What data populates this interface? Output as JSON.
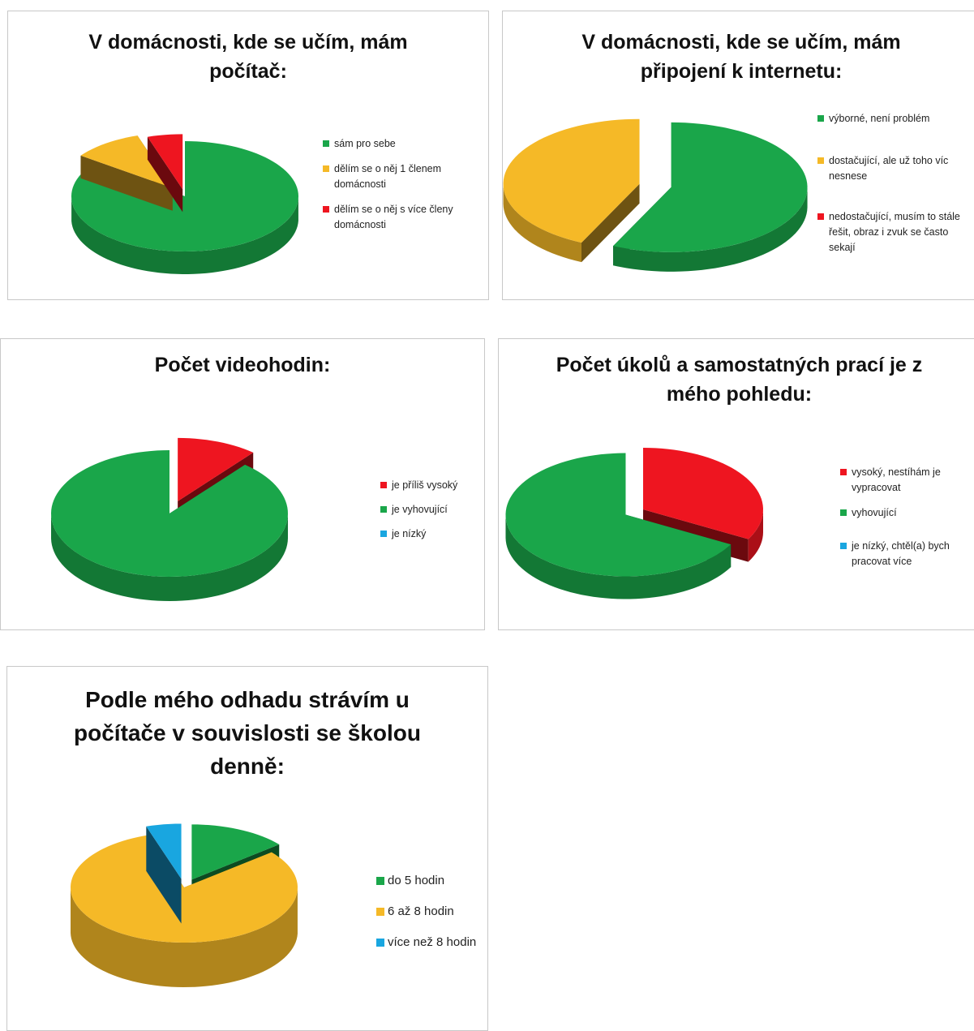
{
  "colors": {
    "green": "#1aa64a",
    "yellow": "#f5b927",
    "red": "#ee1520",
    "blue": "#19a6e0"
  },
  "chart_data": [
    {
      "type": "pie",
      "title": "V domácnosti, kde se učím, mám počítač:",
      "title_lines": [
        "V domácnosti, kde se učím, mám",
        "počítač:"
      ],
      "series": [
        {
          "name": "sám pro sebe",
          "value": 85,
          "color": "#1aa64a"
        },
        {
          "name": "dělím se o něj 1 členem domácnosti",
          "value": 10,
          "color": "#f5b927"
        },
        {
          "name": "dělím se o něj s více členy domácnosti",
          "value": 5,
          "color": "#ee1520"
        }
      ],
      "legend_position": "right"
    },
    {
      "type": "pie",
      "title": "V domácnosti, kde se učím, mám připojení k internetu:",
      "title_lines": [
        "V domácnosti, kde se učím, mám",
        "připojení k internetu:"
      ],
      "series": [
        {
          "name": "výborné, není problém",
          "value": 57,
          "color": "#1aa64a"
        },
        {
          "name": "dostačující, ale už toho víc nesnese",
          "value": 43,
          "color": "#f5b927"
        },
        {
          "name": "nedostačující, musím to stále řešit, obraz i zvuk se často sekají",
          "value": 0,
          "color": "#ee1520"
        }
      ],
      "legend_position": "right"
    },
    {
      "type": "pie",
      "title": "Počet videohodin:",
      "title_lines": [
        "Počet videohodin:"
      ],
      "series": [
        {
          "name": "je příliš vysoký",
          "value": 11,
          "color": "#ee1520"
        },
        {
          "name": "je vyhovující",
          "value": 89,
          "color": "#1aa64a"
        },
        {
          "name": "je nízký",
          "value": 0,
          "color": "#19a6e0"
        }
      ],
      "legend_position": "right"
    },
    {
      "type": "pie",
      "title": "Počet úkolů a samostatných prací je z mého pohledu:",
      "title_lines": [
        "Počet úkolů a samostatných prací je z",
        "mého pohledu:"
      ],
      "series": [
        {
          "name": "vysoký, nestíhám je vypracovat",
          "value": 33,
          "color": "#ee1520"
        },
        {
          "name": "vyhovující",
          "value": 67,
          "color": "#1aa64a"
        },
        {
          "name": "je nízký, chtěl(a) bych pracovat více",
          "value": 0,
          "color": "#19a6e0"
        }
      ],
      "legend_position": "right"
    },
    {
      "type": "pie",
      "title": "Podle mého odhadu strávím u počítače v souvislosti se školou denně:",
      "title_lines": [
        "Podle mého odhadu strávím u",
        "počítače v souvislosti se školou",
        "denně:"
      ],
      "series": [
        {
          "name": "do 5 hodin",
          "value": 14,
          "color": "#1aa64a"
        },
        {
          "name": "6 až 8 hodin",
          "value": 81,
          "color": "#f5b927"
        },
        {
          "name": "více než 8 hodin",
          "value": 5,
          "color": "#19a6e0"
        }
      ],
      "legend_position": "right"
    }
  ]
}
